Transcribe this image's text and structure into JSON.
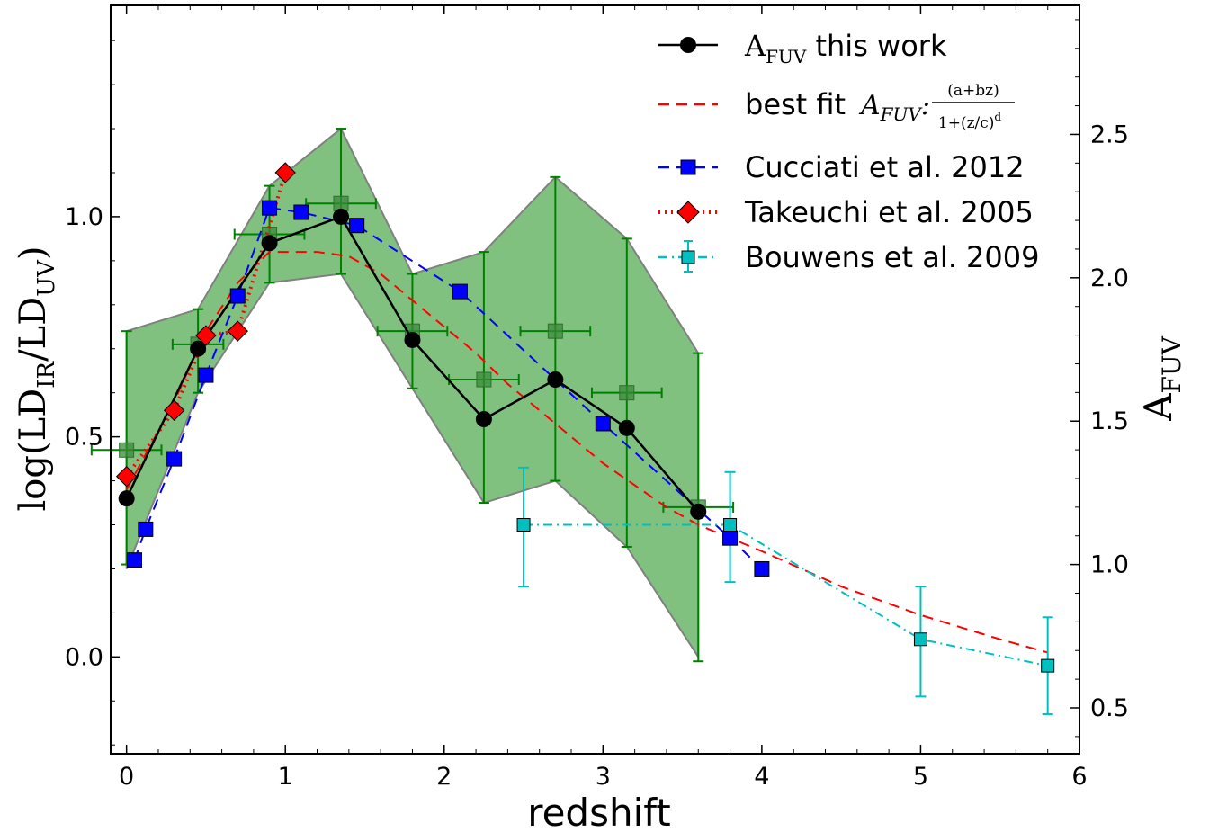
{
  "chart_data": {
    "type": "line",
    "xlabel": "redshift",
    "ylabel_left": "log(LD_IR/LD_UV)",
    "ylabel_right": "A_FUV",
    "xlim": [
      -0.1,
      6.0
    ],
    "ylim_left": [
      -0.22,
      1.48
    ],
    "ylim_right": [
      0.34,
      2.95
    ],
    "x_ticks": [
      0,
      1,
      2,
      3,
      4,
      5,
      6
    ],
    "y_ticks_left": [
      0.0,
      0.5,
      1.0
    ],
    "y_ticks_left_labels": [
      "0.0",
      "0.5",
      "1.0"
    ],
    "y_ticks_right": [
      0.5,
      1.0,
      1.5,
      2.0,
      2.5
    ],
    "y_ticks_right_labels": [
      "0.5",
      "1.0",
      "1.5",
      "2.0",
      "2.5"
    ],
    "grid": false,
    "legend_position": "top-right",
    "colors": {
      "this_work": "#000000",
      "best_fit": "#ff0000",
      "cucciati": "#0000ff",
      "takeuchi": "#ff0000",
      "bouwens": "#00bfbf",
      "band_fill": "#4aa64a",
      "band_edge": "#808080",
      "errorbar_green": "#008000"
    },
    "legend": [
      {
        "key": "this_work",
        "label_main": "A",
        "label_sub": "FUV",
        "label_rest": " this work"
      },
      {
        "key": "best_fit",
        "label_main": "best fit ",
        "label_formula_var": "A",
        "label_formula_sub": "FUV",
        "label_formula_num": "(a+bz)",
        "label_formula_den": "1+(z/c)",
        "label_formula_den_sup": "d"
      },
      {
        "key": "cucciati",
        "label": "Cucciati et al. 2012"
      },
      {
        "key": "takeuchi",
        "label": "Takeuchi et al. 2005"
      },
      {
        "key": "bouwens",
        "label": "Bouwens et al. 2009"
      }
    ],
    "band": {
      "upper": [
        [
          0.0,
          0.74
        ],
        [
          0.45,
          0.79
        ],
        [
          0.9,
          1.07
        ],
        [
          1.35,
          1.2
        ],
        [
          1.8,
          0.87
        ],
        [
          2.25,
          0.92
        ],
        [
          2.7,
          1.09
        ],
        [
          3.15,
          0.95
        ],
        [
          3.6,
          0.69
        ]
      ],
      "lower": [
        [
          0.0,
          0.2
        ],
        [
          0.45,
          0.6
        ],
        [
          0.9,
          0.85
        ],
        [
          1.35,
          0.87
        ],
        [
          1.8,
          0.61
        ],
        [
          2.25,
          0.35
        ],
        [
          2.7,
          0.4
        ],
        [
          3.15,
          0.25
        ],
        [
          3.6,
          0.0
        ]
      ]
    },
    "green_points": [
      {
        "x": 0.0,
        "y": 0.47,
        "xerr": 0.22,
        "ylo": 0.21,
        "yhi": 0.74
      },
      {
        "x": 0.45,
        "y": 0.71,
        "xerr": 0.16,
        "ylo": 0.6,
        "yhi": 0.79
      },
      {
        "x": 0.9,
        "y": 0.96,
        "xerr": 0.22,
        "ylo": 0.85,
        "yhi": 1.07
      },
      {
        "x": 1.35,
        "y": 1.03,
        "xerr": 0.22,
        "ylo": 0.87,
        "yhi": 1.2
      },
      {
        "x": 1.8,
        "y": 0.74,
        "xerr": 0.22,
        "ylo": 0.61,
        "yhi": 0.87
      },
      {
        "x": 2.25,
        "y": 0.63,
        "xerr": 0.22,
        "ylo": 0.35,
        "yhi": 0.92
      },
      {
        "x": 2.7,
        "y": 0.74,
        "xerr": 0.22,
        "ylo": 0.4,
        "yhi": 1.09
      },
      {
        "x": 3.15,
        "y": 0.6,
        "xerr": 0.22,
        "ylo": 0.25,
        "yhi": 0.95
      },
      {
        "x": 3.6,
        "y": 0.34,
        "xerr": 0.22,
        "ylo": -0.01,
        "yhi": 0.69
      }
    ],
    "series": [
      {
        "name": "A_FUV this work",
        "key": "this_work",
        "x": [
          0.0,
          0.45,
          0.9,
          1.35,
          1.8,
          2.25,
          2.7,
          3.15,
          3.6
        ],
        "y": [
          0.36,
          0.7,
          0.94,
          1.0,
          0.72,
          0.54,
          0.63,
          0.52,
          0.33
        ]
      },
      {
        "name": "best fit",
        "key": "best_fit",
        "x": [
          0.0,
          0.3,
          0.5,
          0.7,
          0.9,
          1.0,
          1.2,
          1.4,
          1.6,
          1.8,
          2.0,
          2.2,
          2.4,
          2.6,
          2.8,
          3.0,
          3.2,
          3.4,
          3.6,
          3.8,
          4.0,
          4.5,
          5.0,
          5.5,
          5.8
        ],
        "y": [
          0.38,
          0.58,
          0.74,
          0.85,
          0.92,
          0.92,
          0.92,
          0.91,
          0.87,
          0.81,
          0.75,
          0.69,
          0.62,
          0.56,
          0.5,
          0.44,
          0.39,
          0.34,
          0.3,
          0.27,
          0.24,
          0.16,
          0.095,
          0.04,
          0.01
        ]
      },
      {
        "name": "Cucciati et al. 2012",
        "key": "cucciati",
        "x": [
          0.05,
          0.12,
          0.3,
          0.5,
          0.7,
          0.9,
          1.1,
          1.45,
          2.1,
          3.0,
          3.8,
          4.0
        ],
        "y": [
          0.22,
          0.29,
          0.45,
          0.64,
          0.82,
          1.02,
          1.01,
          0.98,
          0.83,
          0.53,
          0.27,
          0.2
        ]
      },
      {
        "name": "Takeuchi et al. 2005",
        "key": "takeuchi",
        "x": [
          0.0,
          0.3,
          0.5,
          0.7,
          1.0
        ],
        "y": [
          0.41,
          0.56,
          0.73,
          0.74,
          1.1
        ]
      },
      {
        "name": "Bouwens et al. 2009",
        "key": "bouwens",
        "x": [
          2.5,
          3.8,
          5.0,
          5.8
        ],
        "y": [
          0.3,
          0.3,
          0.04,
          -0.02
        ],
        "ylo": [
          0.16,
          0.17,
          -0.09,
          -0.13
        ],
        "yhi": [
          0.43,
          0.42,
          0.16,
          0.09
        ]
      }
    ]
  }
}
